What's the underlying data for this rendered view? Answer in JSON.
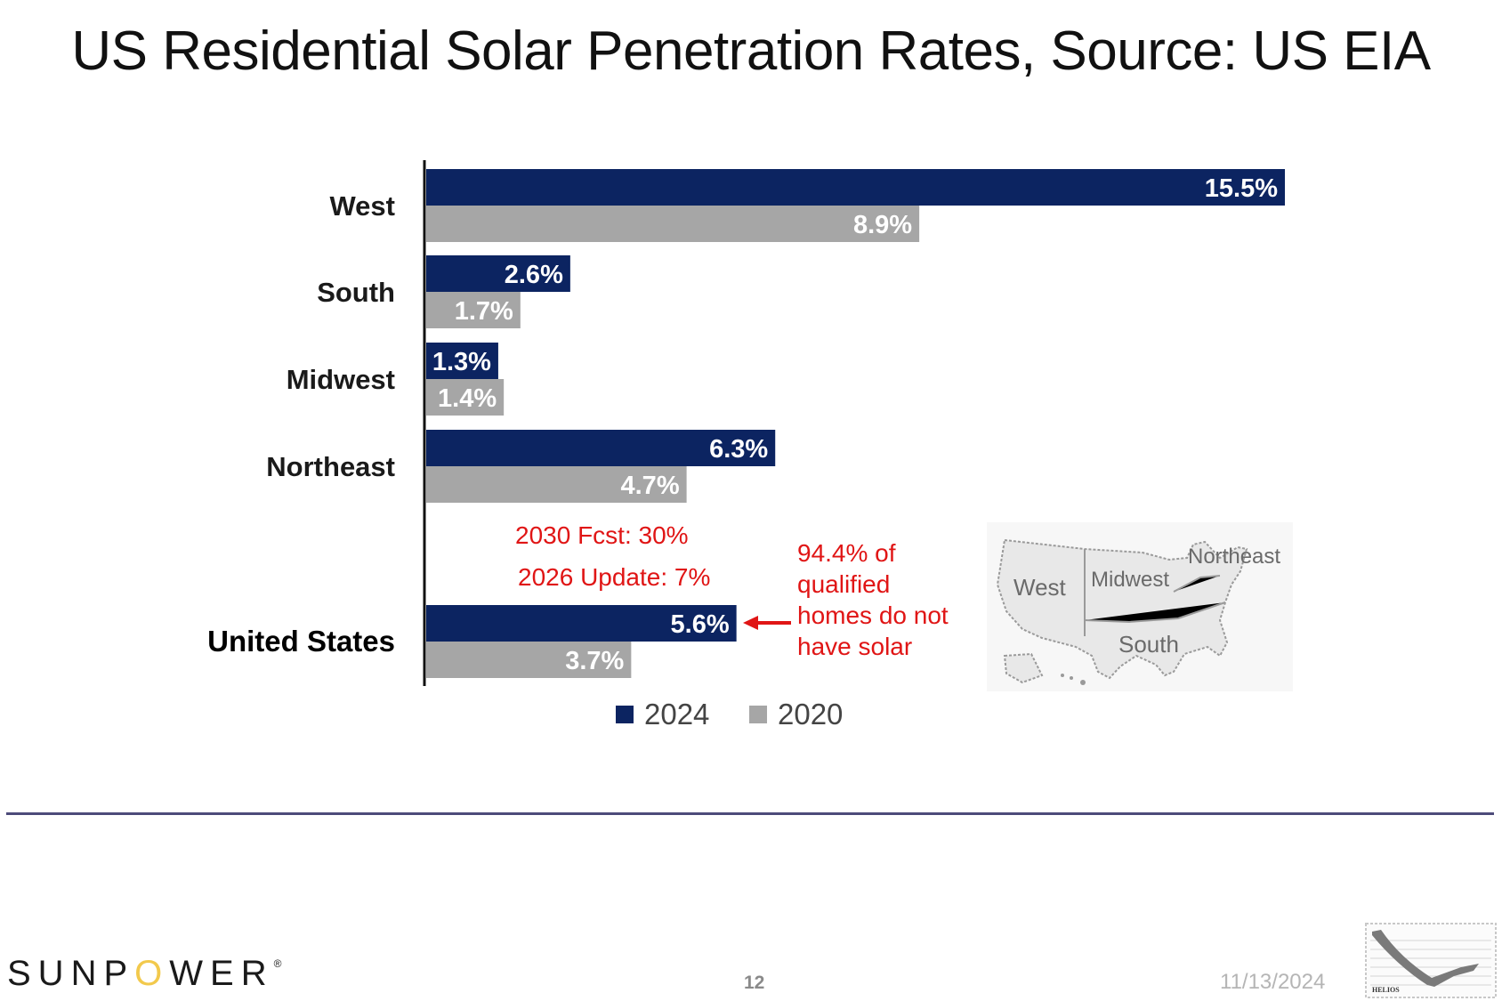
{
  "title": "US Residential Solar Penetration Rates, Source: US EIA",
  "chart_data": {
    "type": "bar",
    "orientation": "horizontal",
    "title": "US Residential Solar Penetration Rates",
    "source": "US EIA",
    "categories": [
      "West",
      "South",
      "Midwest",
      "Northeast",
      "United States"
    ],
    "series": [
      {
        "name": "2024",
        "color": "#0c2461",
        "values": [
          15.5,
          2.6,
          1.3,
          6.3,
          5.6
        ],
        "labels": [
          "15.5%",
          "2.6%",
          "1.3%",
          "6.3%",
          "5.6%"
        ]
      },
      {
        "name": "2020",
        "color": "#a6a6a6",
        "values": [
          8.9,
          1.7,
          1.4,
          4.7,
          3.7
        ],
        "labels": [
          "8.9%",
          "1.7%",
          "1.4%",
          "4.7%",
          "3.7%"
        ]
      }
    ],
    "xlabel": "",
    "ylabel": "",
    "xlim": [
      0,
      15.5
    ],
    "grid": false,
    "legend": "bottom-center",
    "value_format": "percent"
  },
  "annotations": {
    "forecast_2030": "2030 Fcst:    30%",
    "update_2026": "2026 Update:  7%",
    "note_lines": [
      "94.4% of",
      "qualified",
      "homes do not",
      "have solar"
    ],
    "arrow_target": "United States 2024",
    "color": "#e01515"
  },
  "map": {
    "icon": "us-regions-map",
    "regions": [
      "West",
      "Midwest",
      "Northeast",
      "South"
    ]
  },
  "footer": {
    "logo_prefix": "SUNP",
    "logo_o": "O",
    "logo_suffix": "WER",
    "logo_mark": "®",
    "page_number": "12",
    "date": "11/13/2024",
    "stamp_caption": "HELIOS"
  }
}
